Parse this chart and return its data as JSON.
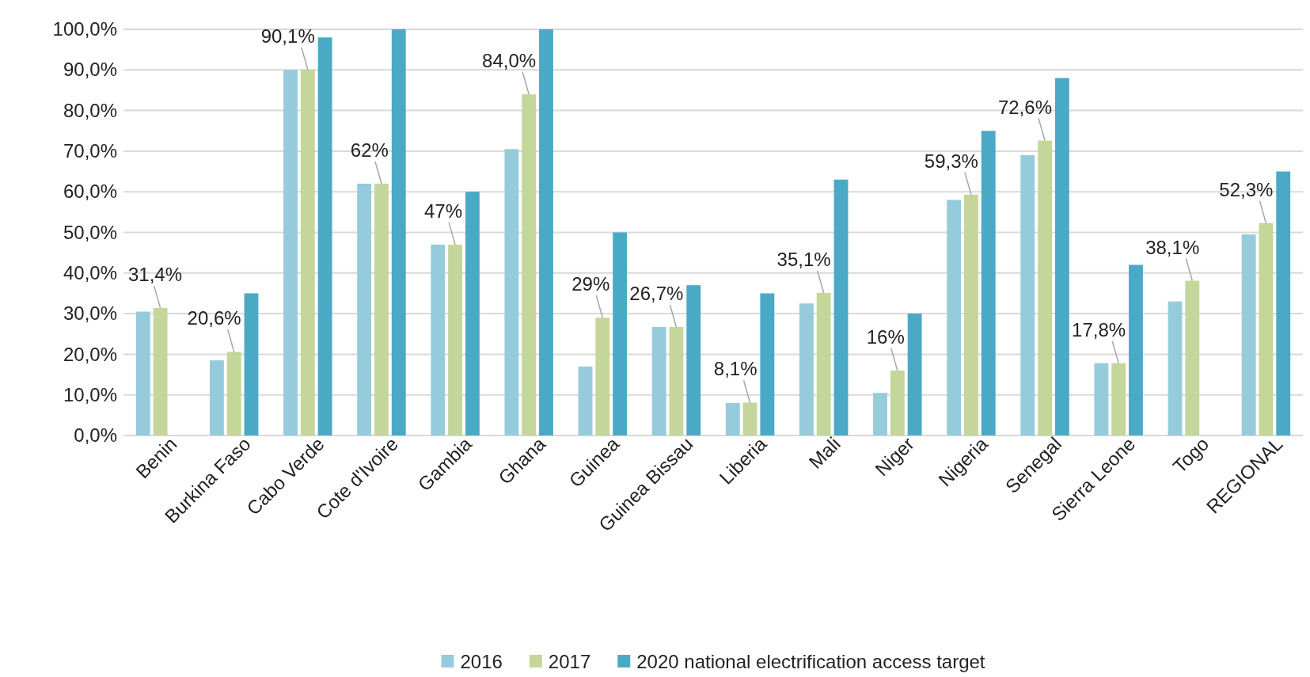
{
  "chart_data": {
    "type": "bar",
    "categories": [
      "Benin",
      "Burkina Faso",
      "Cabo Verde",
      "Cote d'Ivoire",
      "Gambia",
      "Ghana",
      "Guinea",
      "Guinea Bissau",
      "Liberia",
      "Mali",
      "Niger",
      "Nigeria",
      "Senegal",
      "Sierra Leone",
      "Togo",
      "REGIONAL"
    ],
    "series": [
      {
        "name": "2016",
        "color": "#96cbdc",
        "values": [
          30.5,
          18.5,
          90,
          62,
          47,
          70.5,
          17,
          26.7,
          8,
          32.5,
          10.5,
          58,
          69,
          17.8,
          33,
          49.5
        ]
      },
      {
        "name": "2017",
        "color": "#c4d69a",
        "values": [
          31.4,
          20.6,
          90.1,
          62,
          47,
          84,
          29,
          26.7,
          8.1,
          35.1,
          16,
          59.3,
          72.6,
          17.8,
          38.1,
          52.3
        ],
        "value_labels": [
          "31,4%",
          "20,6%",
          "90,1%",
          "62%",
          "47%",
          "84,0%",
          "29%",
          "26,7%",
          "8,1%",
          "35,1%",
          "16%",
          "59,3%",
          "72,6%",
          "17,8%",
          "38,1%",
          "52,3%"
        ]
      },
      {
        "name": "2020 national electrification access target",
        "color": "#4aaac5",
        "values": [
          null,
          35,
          98,
          100,
          60,
          100,
          50,
          37,
          35,
          63,
          30,
          75,
          88,
          42,
          null,
          65
        ]
      }
    ],
    "ylim": [
      0,
      100
    ],
    "yticks": [
      {
        "value": 0,
        "label": "0,0%"
      },
      {
        "value": 10,
        "label": "10,0%"
      },
      {
        "value": 20,
        "label": "20,0%"
      },
      {
        "value": 30,
        "label": "30,0%"
      },
      {
        "value": 40,
        "label": "40,0%"
      },
      {
        "value": 50,
        "label": "50,0%"
      },
      {
        "value": 60,
        "label": "60,0%"
      },
      {
        "value": 70,
        "label": "70,0%"
      },
      {
        "value": 80,
        "label": "80,0%"
      },
      {
        "value": 90,
        "label": "90,0%"
      },
      {
        "value": 100,
        "label": "100,0%"
      }
    ],
    "grid": "y",
    "legend": "bottom"
  }
}
